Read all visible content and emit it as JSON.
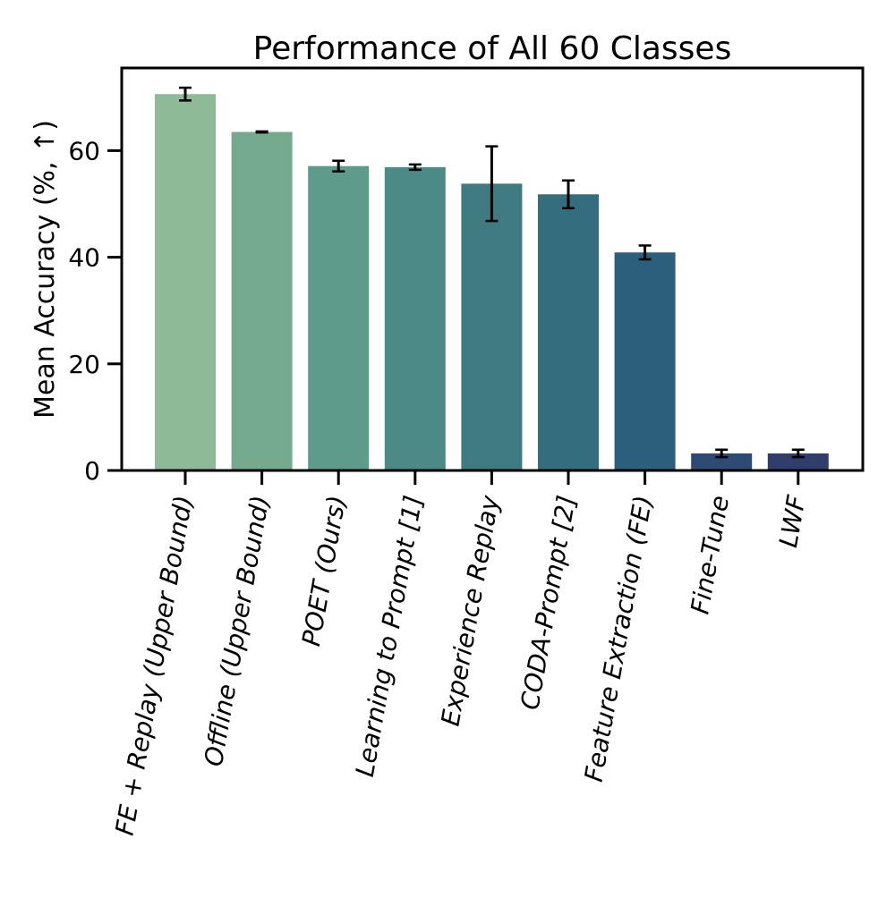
{
  "chart_data": {
    "type": "bar",
    "title": "Performance of All 60 Classes",
    "xlabel": "",
    "ylabel": "Mean Accuracy (%, ↑)",
    "ylim": [
      0,
      75.5
    ],
    "yticks": [
      0,
      20,
      40,
      60
    ],
    "grid": false,
    "legend": "none",
    "categories": [
      "FE + Replay (Upper Bound)",
      "Offline (Upper Bound)",
      "POET (Ours)",
      "Learning to Prompt [1]",
      "Experience Replay",
      "CODA-Prompt [2]",
      "Feature Extraction (FE)",
      "Fine-Tune",
      "LWF"
    ],
    "values": [
      70.6,
      63.5,
      57.1,
      56.9,
      53.8,
      51.8,
      40.9,
      3.2,
      3.2
    ],
    "error": [
      1.2,
      0.1,
      1.0,
      0.5,
      7.0,
      2.6,
      1.3,
      0.7,
      0.7
    ],
    "colors": [
      "#8fba97",
      "#74a98e",
      "#5f9b8a",
      "#4b8a86",
      "#3f7a81",
      "#346d7d",
      "#2b5f7b",
      "#2f4a73",
      "#313d6b"
    ]
  }
}
